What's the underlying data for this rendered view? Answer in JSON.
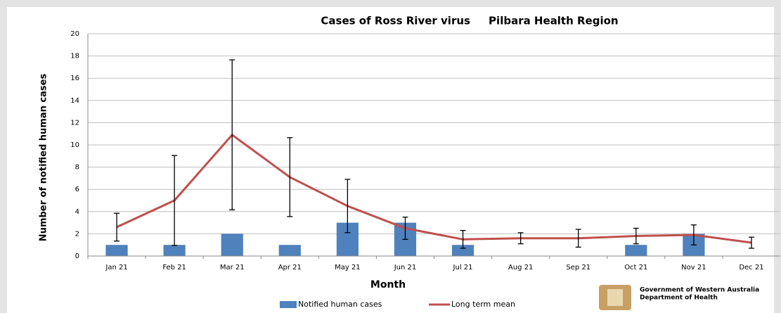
{
  "chart_data": {
    "type": "bar",
    "title": "Cases of Ross River virus     Pilbara Health Region",
    "x_label": "Month",
    "y_label": "Number of notified human cases",
    "categories": [
      "Jan 21",
      "Feb 21",
      "Mar 21",
      "Apr 21",
      "May 21",
      "Jun 21",
      "Jul 21",
      "Aug 21",
      "Sep 21",
      "Oct 21",
      "Nov 21",
      "Dec 21"
    ],
    "series": [
      {
        "name": "Notified human cases",
        "type": "bar",
        "color": "#4f81bd",
        "values": [
          1,
          1,
          2,
          1,
          3,
          3,
          1,
          0,
          0,
          1,
          2,
          0
        ]
      },
      {
        "name": "Long term mean",
        "type": "line",
        "color": "#c0504d",
        "values": [
          2.6,
          5.0,
          10.9,
          7.1,
          4.5,
          2.5,
          1.5,
          1.6,
          1.6,
          1.8,
          1.9,
          1.2
        ],
        "errors": [
          1.25,
          4.05,
          6.75,
          3.55,
          2.4,
          1.0,
          0.8,
          0.5,
          0.8,
          0.7,
          0.9,
          0.5
        ]
      }
    ],
    "ylim": [
      0,
      20
    ],
    "yticks": [
      0,
      2,
      4,
      6,
      8,
      10,
      12,
      14,
      16,
      18,
      20
    ],
    "grid": true,
    "legend": "bottom"
  },
  "logo": {
    "line1": "Government of Western Australia",
    "line2": "Department of Health"
  }
}
